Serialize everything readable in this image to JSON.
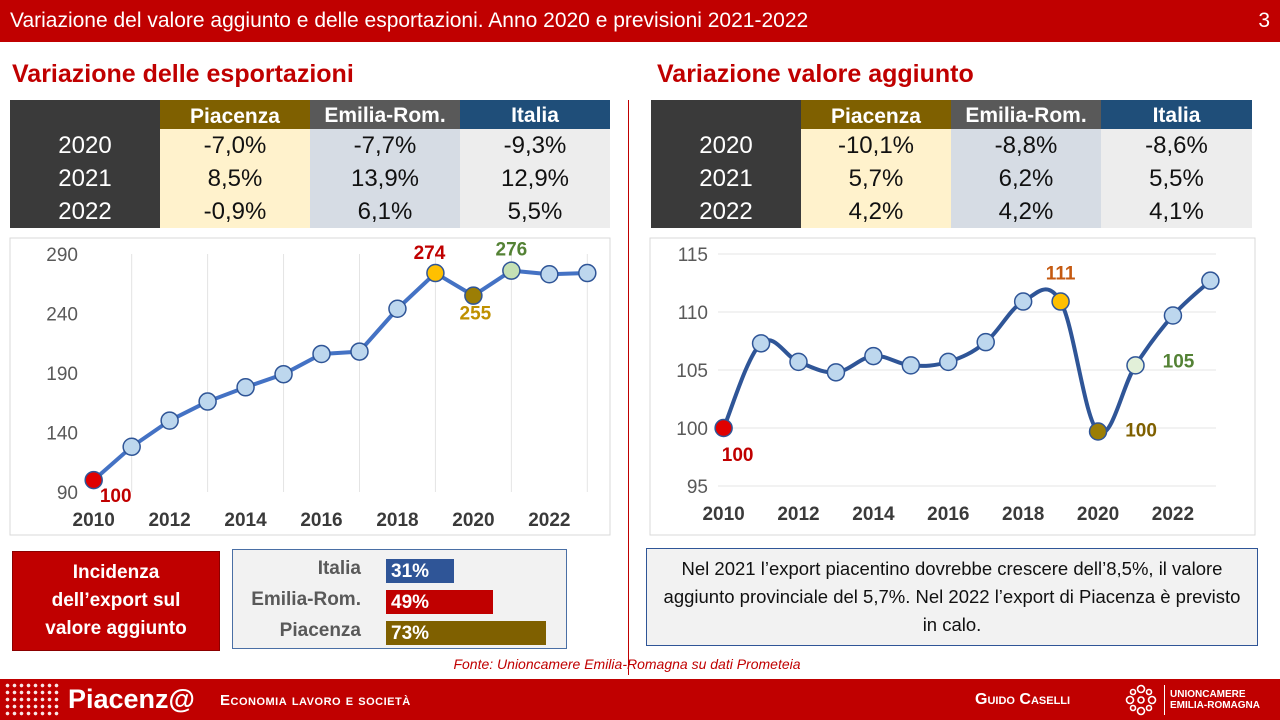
{
  "header": {
    "title": "Variazione del valore aggiunto e delle esportazioni. Anno 2020 e previsioni 2021-2022",
    "page_number": "3"
  },
  "left": {
    "title": "Variazione delle esportazioni",
    "table": {
      "columns": [
        "Piacenza",
        "Emilia-Rom.",
        "Italia"
      ],
      "rows": [
        {
          "year": "2020",
          "values": [
            "-7,0%",
            "-7,7%",
            "-9,3%"
          ]
        },
        {
          "year": "2021",
          "values": [
            "8,5%",
            "13,9%",
            "12,9%"
          ]
        },
        {
          "year": "2022",
          "values": [
            "-0,9%",
            "6,1%",
            "5,5%"
          ]
        }
      ]
    }
  },
  "right": {
    "title": "Variazione valore aggiunto",
    "table": {
      "columns": [
        "Piacenza",
        "Emilia-Rom.",
        "Italia"
      ],
      "rows": [
        {
          "year": "2020",
          "values": [
            "-10,1%",
            "-8,8%",
            "-8,6%"
          ]
        },
        {
          "year": "2021",
          "values": [
            "5,7%",
            "6,2%",
            "5,5%"
          ]
        },
        {
          "year": "2022",
          "values": [
            "4,2%",
            "4,2%",
            "4,1%"
          ]
        }
      ]
    }
  },
  "chart_data": [
    {
      "type": "line",
      "x": [
        2010,
        2011,
        2012,
        2013,
        2014,
        2015,
        2016,
        2017,
        2018,
        2019,
        2020,
        2021,
        2022,
        2023
      ],
      "series": [
        {
          "values": [
            100,
            128,
            150,
            166,
            178,
            189,
            206,
            208,
            244,
            274,
            255,
            276,
            273,
            274
          ]
        }
      ],
      "ylim": [
        90,
        290
      ],
      "yticks": [
        "90",
        "140",
        "190",
        "240",
        "290"
      ],
      "xticks": [
        "2010",
        "2012",
        "2014",
        "2016",
        "2018",
        "2020",
        "2022"
      ],
      "annotations": [
        {
          "index": 0,
          "label": "100",
          "color": "#c00000"
        },
        {
          "index": 9,
          "label": "274",
          "color": "#c00000"
        },
        {
          "index": 10,
          "label": "255",
          "color": "#bf9000"
        },
        {
          "index": 11,
          "label": "276",
          "color": "#548235"
        }
      ],
      "grid": "vertical",
      "line_color": "#4472c4",
      "marker_color": "#bdd7ee",
      "highlight_colors": {
        "0": "#e00000",
        "9": "#ffc000",
        "10": "#9c7e05",
        "11": "#c5e0b4"
      }
    },
    {
      "type": "line",
      "x": [
        2010,
        2011,
        2012,
        2013,
        2014,
        2015,
        2016,
        2017,
        2018,
        2019,
        2020,
        2021,
        2022,
        2023
      ],
      "series": [
        {
          "values": [
            100,
            107.3,
            105.7,
            104.8,
            106.2,
            105.4,
            105.7,
            107.4,
            110.9,
            110.9,
            99.7,
            105.4,
            109.7,
            112.7
          ]
        }
      ],
      "ylim": [
        95,
        115
      ],
      "yticks": [
        "95",
        "100",
        "105",
        "110",
        "115"
      ],
      "xticks": [
        "2010",
        "2012",
        "2014",
        "2016",
        "2018",
        "2020",
        "2022"
      ],
      "annotations": [
        {
          "index": 0,
          "label": "100",
          "color": "#c00000"
        },
        {
          "index": 9,
          "label": "111",
          "color": "#c55a11"
        },
        {
          "index": 10,
          "label": "100",
          "color": "#7f6000"
        },
        {
          "index": 11,
          "label": "105",
          "color": "#548235"
        }
      ],
      "grid": "horizontal",
      "line_color": "#2f5597",
      "marker_color": "#bdd7ee",
      "highlight_colors": {
        "0": "#e00000",
        "9": "#ffc000",
        "10": "#9c7e05",
        "11": "#e2f0d9"
      }
    }
  ],
  "incidence": {
    "label_line1": "Incidenza",
    "label_line2": "dell’export sul",
    "label_line3": "valore aggiunto",
    "bars": [
      {
        "label": "Italia",
        "value": 31,
        "display": "31%",
        "color": "#2f5597"
      },
      {
        "label": "Emilia-Rom.",
        "value": 49,
        "display": "49%",
        "color": "#c00000"
      },
      {
        "label": "Piacenza",
        "value": 73,
        "display": "73%",
        "color": "#7f6000"
      }
    ]
  },
  "note": {
    "text": "Nel 2021 l’export piacentino dovrebbe crescere dell’8,5%, il valore aggiunto provinciale del 5,7%. Nel 2022 l’export di Piacenza è previsto in calo."
  },
  "source": "Fonte: Unioncamere Emilia-Romagna su dati Prometeia",
  "footer": {
    "brand": "Piacenz@",
    "subtitle": "Economia lavoro e società",
    "author": "Guido Caselli",
    "logo_line1": "UNIONCAMERE",
    "logo_line2": "EMILIA-ROMAGNA"
  }
}
